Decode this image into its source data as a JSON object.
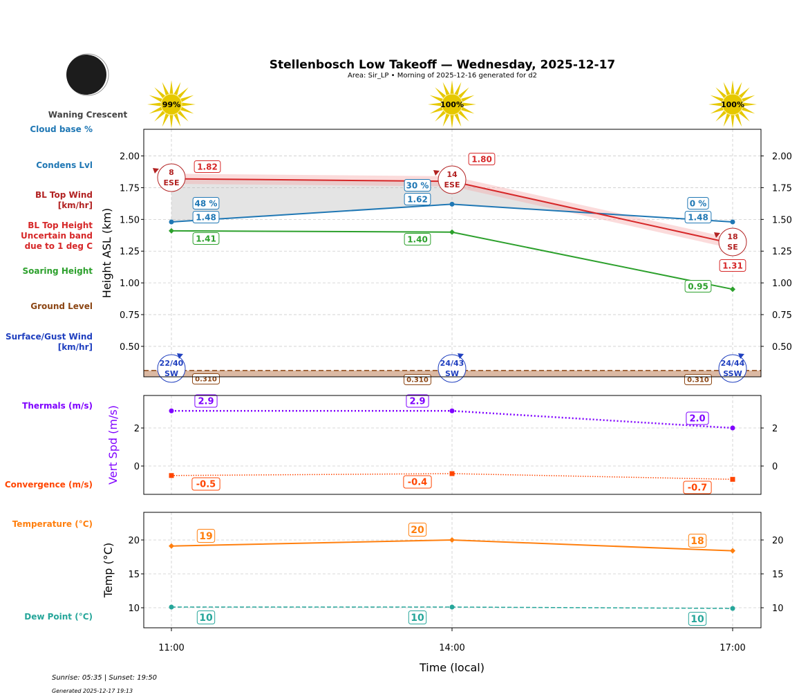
{
  "title": "Stellenbosch Low Takeoff — Wednesday, 2025-12-17",
  "subtitle": "Area: Sir_LP • Morning of 2025-12-16 generated for d2",
  "moon_phase": "Waning Crescent",
  "sunrise_sunset": "Sunrise: 05:35 | Sunset: 19:50",
  "generated": "Generated 2025-12-17 19:13",
  "row_labels": [
    {
      "text": [
        "Cloud base %"
      ],
      "color": "#1f77b4"
    },
    {
      "text": [
        "Condens Lvl"
      ],
      "color": "#1f77b4"
    },
    {
      "text": [
        "BL Top Wind",
        "[km/hr]"
      ],
      "color": "#b22222"
    },
    {
      "text": [
        "BL Top Height",
        "Uncertain band",
        "due to 1 deg C"
      ],
      "color": "#d62728"
    },
    {
      "text": [
        "Soaring Height"
      ],
      "color": "#2ca02c"
    },
    {
      "text": [
        "Ground Level"
      ],
      "color": "#8b4513"
    },
    {
      "text": [
        "Surface/Gust Wind",
        "[km/hr]"
      ],
      "color": "#1f3fbf"
    },
    {
      "text": [
        "Thermals (m/s)"
      ],
      "color": "#7f00ff"
    },
    {
      "text": [
        "Convergence (m/s)"
      ],
      "color": "#ff4500"
    },
    {
      "text": [
        "Temperature (°C)"
      ],
      "color": "#ff7f0e"
    },
    {
      "text": [
        "Dew Point (°C)"
      ],
      "color": "#26a69a"
    }
  ],
  "chart_data": [
    {
      "type": "line",
      "ylabel": "Height ASL (km)",
      "ylim": [
        0.26,
        2.21
      ],
      "yticks": [
        "0.50",
        "0.75",
        "1.00",
        "1.25",
        "1.50",
        "1.75",
        "2.00"
      ],
      "x": [
        "11:00",
        "14:00",
        "17:00"
      ],
      "grid": true,
      "sun_percent": [
        "99%",
        "100%",
        "100%"
      ],
      "series": [
        {
          "key": "bl_top",
          "values": [
            1.82,
            1.8,
            1.31
          ],
          "labels": [
            "1.82",
            "1.80",
            "1.31"
          ],
          "color": "#d62728",
          "band": 0.04
        },
        {
          "key": "condens",
          "values": [
            1.48,
            1.62,
            1.48
          ],
          "labels": [
            "1.48",
            "1.62",
            "1.48"
          ],
          "color": "#1f77b4"
        },
        {
          "key": "soaring",
          "values": [
            1.41,
            1.4,
            0.95
          ],
          "labels": [
            "1.41",
            "1.40",
            "0.95"
          ],
          "color": "#2ca02c"
        },
        {
          "key": "ground",
          "values": [
            0.31,
            0.31,
            0.31
          ],
          "labels": [
            "0.310",
            "0.310",
            "0.310"
          ],
          "color": "#8b4513"
        }
      ],
      "cloud_base_pct": [
        "48 %",
        "30 %",
        "0 %"
      ],
      "bl_wind": [
        {
          "speed": "8",
          "dir": "ESE"
        },
        {
          "speed": "14",
          "dir": "ESE"
        },
        {
          "speed": "18",
          "dir": "SE"
        }
      ],
      "surface_wind": [
        {
          "speed": "22/40",
          "dir": "SW"
        },
        {
          "speed": "24/43",
          "dir": "SW"
        },
        {
          "speed": "24/44",
          "dir": "SSW"
        }
      ]
    },
    {
      "type": "line",
      "ylabel": "Vert Spd (m/s)",
      "ylim": [
        -1.49,
        3.71
      ],
      "yticks": [
        "0",
        "2"
      ],
      "x": [
        "11:00",
        "14:00",
        "17:00"
      ],
      "grid": true,
      "series": [
        {
          "key": "thermals",
          "values": [
            2.9,
            2.9,
            2.0
          ],
          "labels": [
            "2.9",
            "2.9",
            "2.0"
          ],
          "color": "#7f00ff"
        },
        {
          "key": "convergence",
          "values": [
            -0.5,
            -0.4,
            -0.7
          ],
          "labels": [
            "-0.5",
            "-0.4",
            "-0.7"
          ],
          "color": "#ff4500"
        }
      ]
    },
    {
      "type": "line",
      "ylabel": "Temp (°C)",
      "xlabel": "Time (local)",
      "ylim": [
        7.04,
        24.08
      ],
      "yticks": [
        "10",
        "15",
        "20"
      ],
      "x": [
        "11:00",
        "14:00",
        "17:00"
      ],
      "grid": true,
      "series": [
        {
          "key": "temperature",
          "values": [
            19.1,
            20.0,
            18.4
          ],
          "labels": [
            "19",
            "20",
            "18"
          ],
          "color": "#ff7f0e"
        },
        {
          "key": "dewpoint",
          "values": [
            10.1,
            10.1,
            9.9
          ],
          "labels": [
            "10",
            "10",
            "10"
          ],
          "color": "#26a69a"
        }
      ]
    }
  ]
}
